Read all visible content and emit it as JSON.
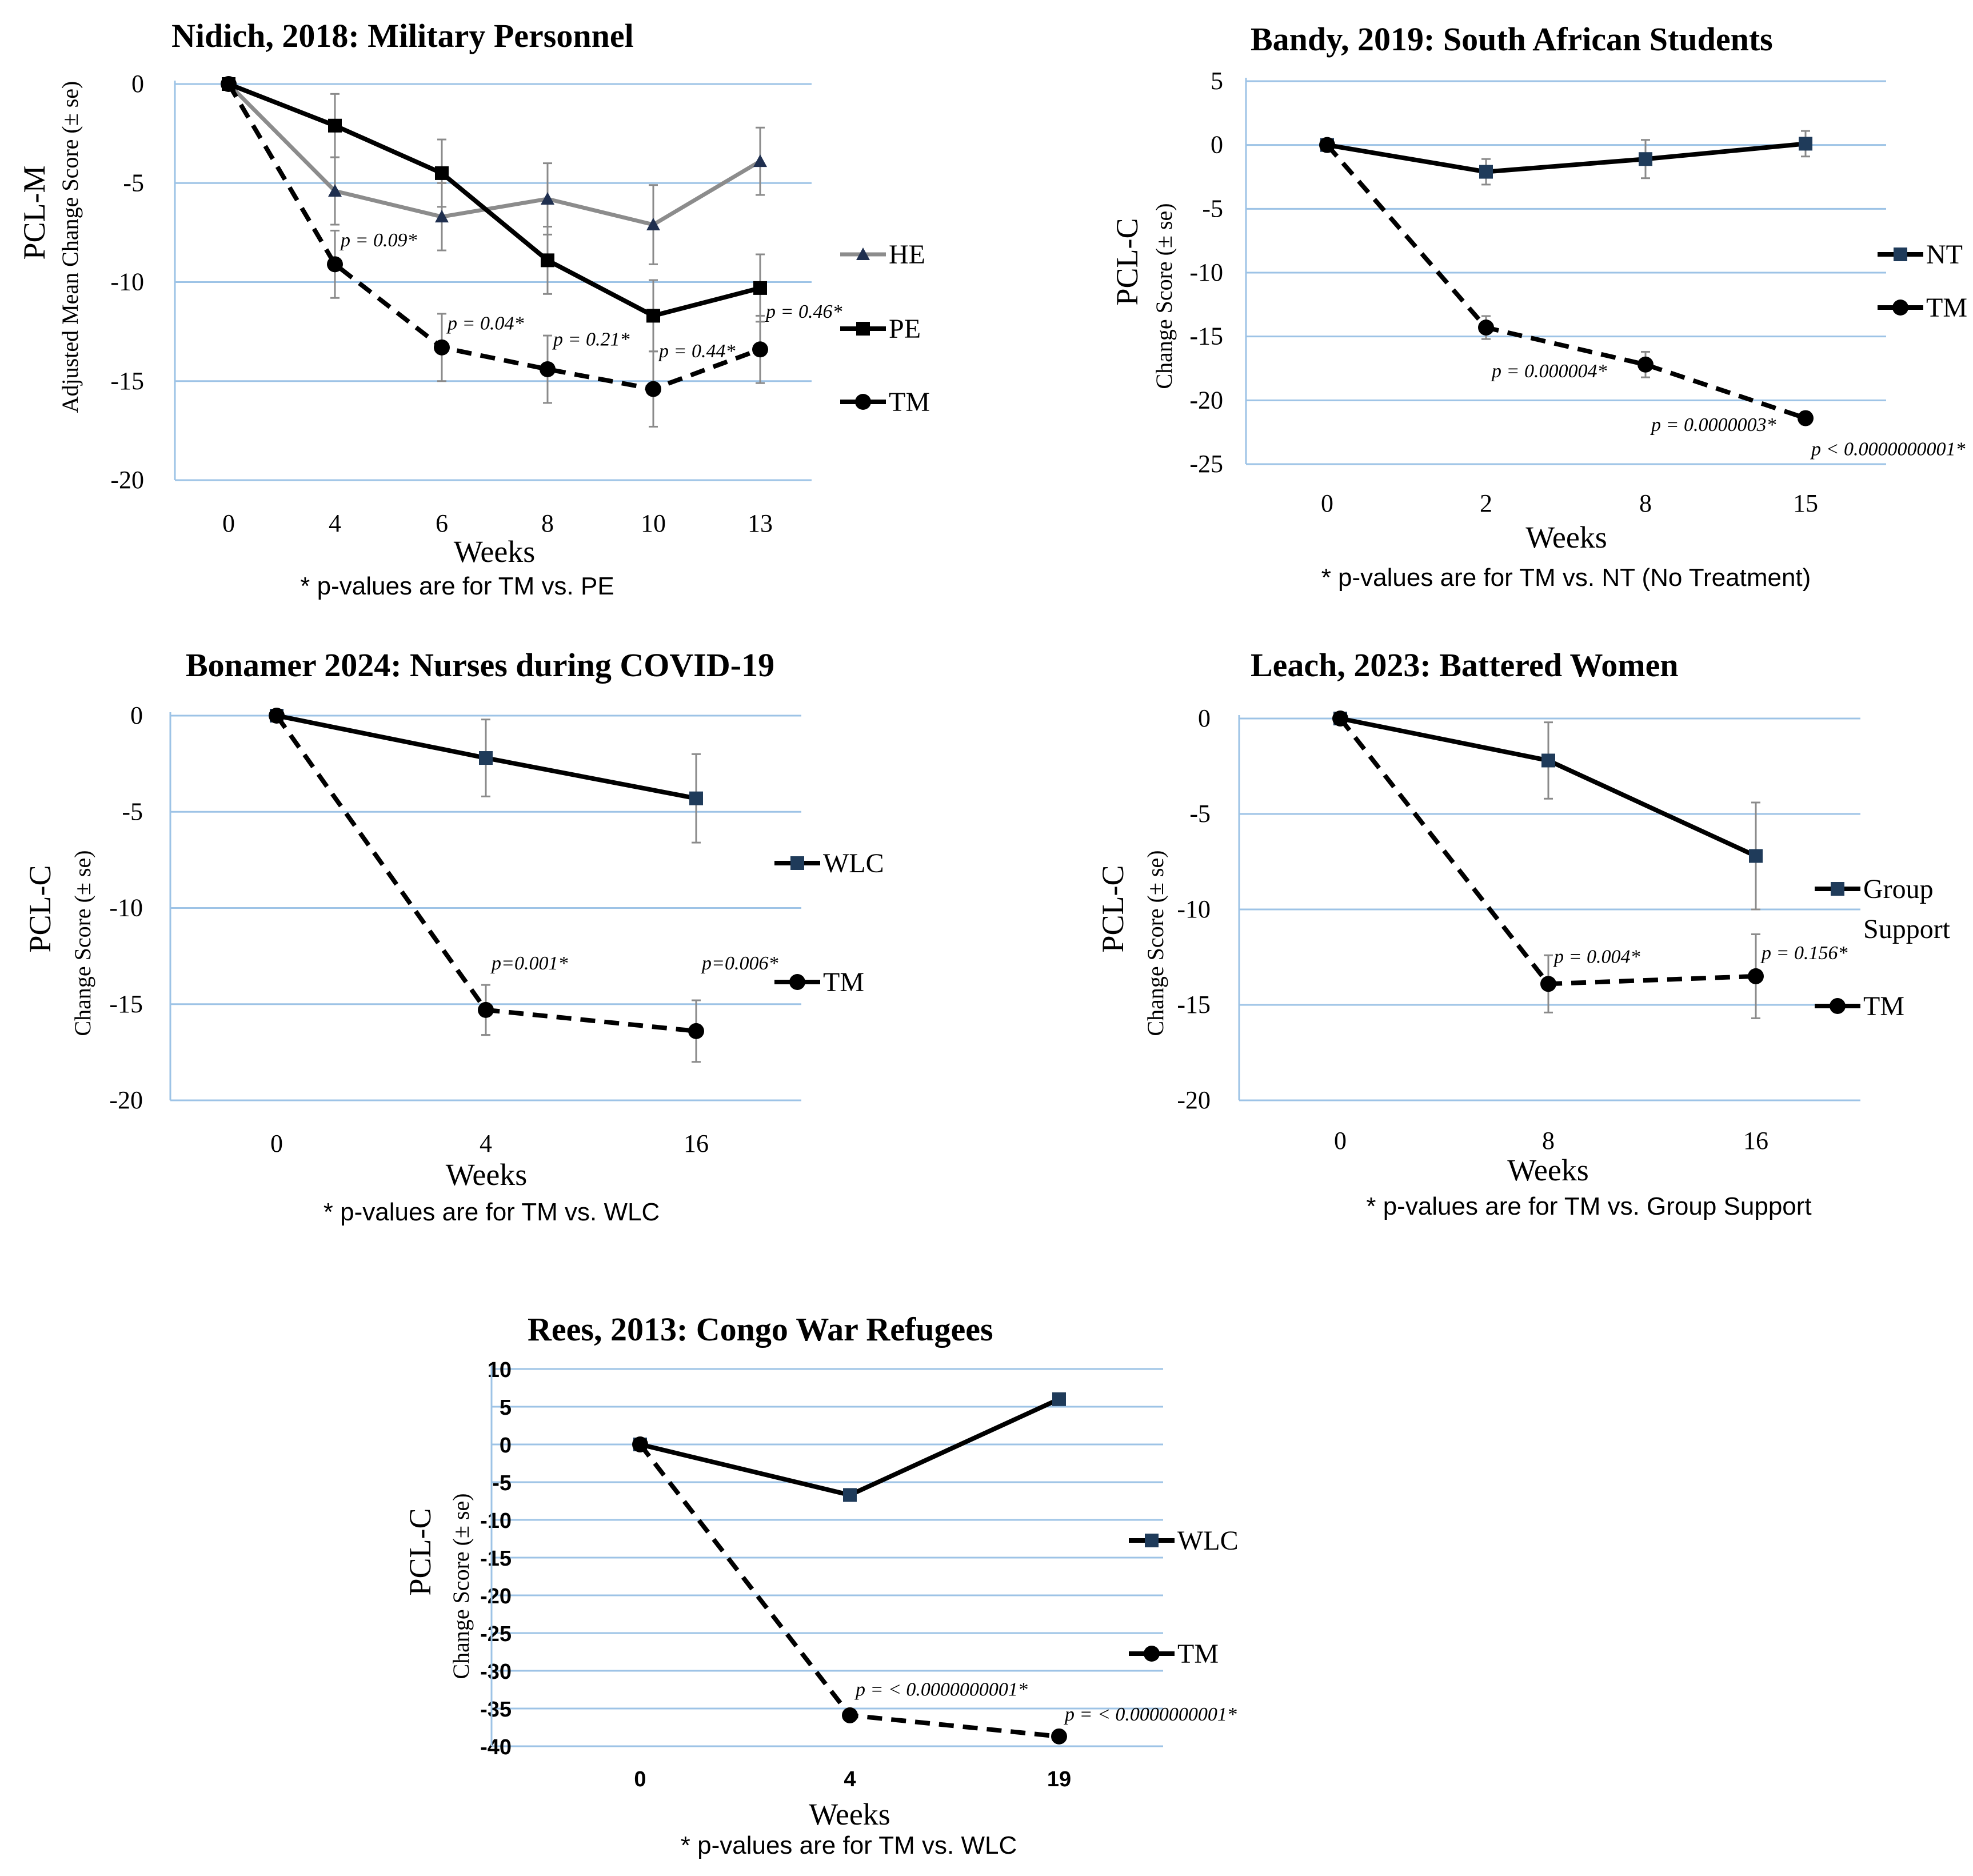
{
  "chart_data": [
    {
      "id": "nidich",
      "type": "line",
      "title": "Nidich, 2018: Military Personnel",
      "ylabel_main": "PCL-M",
      "ylabel_sub": "Adjusted Mean Change Score (± se)",
      "xlabel": "Weeks",
      "footnote": "* p-values are for TM vs. PE",
      "categories": [
        "0",
        "4",
        "6",
        "8",
        "10",
        "13"
      ],
      "ylim": [
        -20,
        0
      ],
      "yticks": [
        0,
        -5,
        -10,
        -15,
        -20
      ],
      "series": [
        {
          "name": "HE",
          "style": "gray-solid",
          "marker": "triangle",
          "values": [
            0,
            -5.4,
            -6.7,
            -5.8,
            -7.1,
            -3.9
          ],
          "errors": [
            0,
            1.7,
            1.7,
            1.8,
            2.0,
            1.7
          ]
        },
        {
          "name": "PE",
          "style": "black-solid",
          "marker": "square",
          "values": [
            0,
            -2.1,
            -4.5,
            -8.9,
            -11.7,
            -10.3
          ],
          "errors": [
            0,
            1.6,
            1.7,
            1.7,
            1.8,
            1.7
          ]
        },
        {
          "name": "TM",
          "style": "black-dashed",
          "marker": "circle",
          "values": [
            0,
            -9.1,
            -13.3,
            -14.4,
            -15.4,
            -13.4
          ],
          "errors": [
            0,
            1.7,
            1.7,
            1.7,
            1.9,
            1.7
          ]
        }
      ],
      "annotations": [
        {
          "category_index": 1,
          "y": -8.2,
          "text": "p = 0.09*"
        },
        {
          "category_index": 2,
          "y": -12.4,
          "text": "p = 0.04*"
        },
        {
          "category_index": 3,
          "y": -13.2,
          "text": "p = 0.21*"
        },
        {
          "category_index": 4,
          "y": -13.8,
          "text": "p = 0.44*"
        },
        {
          "category_index": 5,
          "y": -11.8,
          "text": "p = 0.46*"
        }
      ]
    },
    {
      "id": "bandy",
      "type": "line",
      "title": "Bandy, 2019: South African Students",
      "ylabel_main": "PCL-C",
      "ylabel_sub": "Change Score (± se)",
      "xlabel": "Weeks",
      "footnote": "* p-values are for TM vs. NT (No Treatment)",
      "categories": [
        "0",
        "2",
        "8",
        "15"
      ],
      "ylim": [
        -25,
        5
      ],
      "yticks": [
        5,
        0,
        -5,
        -10,
        -15,
        -20,
        -25
      ],
      "series": [
        {
          "name": "NT",
          "style": "black-solid",
          "marker": "square",
          "values": [
            0,
            -2.1,
            -1.1,
            0.1
          ],
          "errors": [
            0,
            1.0,
            1.5,
            1.0
          ]
        },
        {
          "name": "TM",
          "style": "black-dashed",
          "marker": "circle",
          "values": [
            0,
            -14.3,
            -17.2,
            -21.4
          ],
          "errors": [
            0,
            0.9,
            1.0,
            0.5
          ]
        }
      ],
      "annotations": [
        {
          "category_index": 1,
          "y": -18.2,
          "text": "p = 0.000004*"
        },
        {
          "category_index": 2,
          "y": -22.4,
          "text": "p = 0.0000003*"
        },
        {
          "category_index": 3,
          "y": -24.3,
          "text": "p < 0.0000000001*"
        }
      ]
    },
    {
      "id": "bonamer",
      "type": "line",
      "title": "Bonamer 2024: Nurses during COVID-19",
      "ylabel_main": "PCL-C",
      "ylabel_sub": "Change Score (± se)",
      "xlabel": "Weeks",
      "footnote": "* p-values are for TM vs. WLC",
      "categories": [
        "0",
        "4",
        "16"
      ],
      "ylim": [
        -20,
        0
      ],
      "yticks": [
        0,
        -5,
        -10,
        -15,
        -20
      ],
      "series": [
        {
          "name": "WLC",
          "style": "black-solid",
          "marker": "square",
          "values": [
            0,
            -2.2,
            -4.3
          ],
          "errors": [
            0,
            2.0,
            2.3
          ]
        },
        {
          "name": "TM",
          "style": "black-dashed",
          "marker": "circle",
          "values": [
            0,
            -15.3,
            -16.4
          ],
          "errors": [
            0,
            1.3,
            1.6
          ]
        }
      ],
      "annotations": [
        {
          "category_index": 1,
          "y": -13.2,
          "text": "p=0.001*"
        },
        {
          "category_index": 2,
          "y": -13.2,
          "text": "p=0.006*"
        }
      ]
    },
    {
      "id": "leach",
      "type": "line",
      "title": "Leach, 2023: Battered Women",
      "ylabel_main": "PCL-C",
      "ylabel_sub": "Change Score (± se)",
      "xlabel": "Weeks",
      "footnote": "* p-values are for TM vs. Group Support",
      "categories": [
        "0",
        "8",
        "16"
      ],
      "ylim": [
        -20,
        0
      ],
      "yticks": [
        0,
        -5,
        -10,
        -15,
        -20
      ],
      "series": [
        {
          "name": "Group Support",
          "legend_lines": [
            "Group",
            "Support"
          ],
          "style": "black-solid",
          "marker": "square",
          "values": [
            0,
            -2.2,
            -7.2
          ],
          "errors": [
            0,
            2.0,
            2.8
          ]
        },
        {
          "name": "TM",
          "style": "black-dashed",
          "marker": "circle",
          "values": [
            0,
            -13.9,
            -13.5
          ],
          "errors": [
            0,
            1.5,
            2.2
          ]
        }
      ],
      "annotations": [
        {
          "category_index": 1,
          "y": -12.8,
          "text": "p = 0.004*"
        },
        {
          "category_index": 2,
          "y": -12.6,
          "text": "p = 0.156*"
        }
      ]
    },
    {
      "id": "rees",
      "type": "line",
      "title": "Rees, 2013: Congo War Refugees",
      "ylabel_main": "PCL-C",
      "ylabel_sub": "Change Score (± se)",
      "xlabel": "Weeks",
      "footnote": "* p-values are for TM vs. WLC",
      "categories": [
        "0",
        "4",
        "19"
      ],
      "ylim": [
        -40,
        10
      ],
      "yticks": [
        10,
        5,
        0,
        -5,
        -10,
        -15,
        -20,
        -25,
        -30,
        -35,
        -40
      ],
      "series": [
        {
          "name": "WLC",
          "style": "black-solid",
          "marker": "square",
          "values": [
            0,
            -6.7,
            6.0
          ],
          "errors": [
            0,
            0,
            0
          ]
        },
        {
          "name": "TM",
          "style": "black-dashed",
          "marker": "circle",
          "values": [
            0,
            -35.9,
            -38.7
          ],
          "errors": [
            0,
            0,
            0
          ]
        }
      ],
      "annotations": [
        {
          "category_index": 1,
          "y": -33.3,
          "text": "p = < 0.0000000001*"
        },
        {
          "category_index": 2,
          "y": -36.6,
          "text": "p = < 0.0000000001*"
        }
      ]
    }
  ]
}
